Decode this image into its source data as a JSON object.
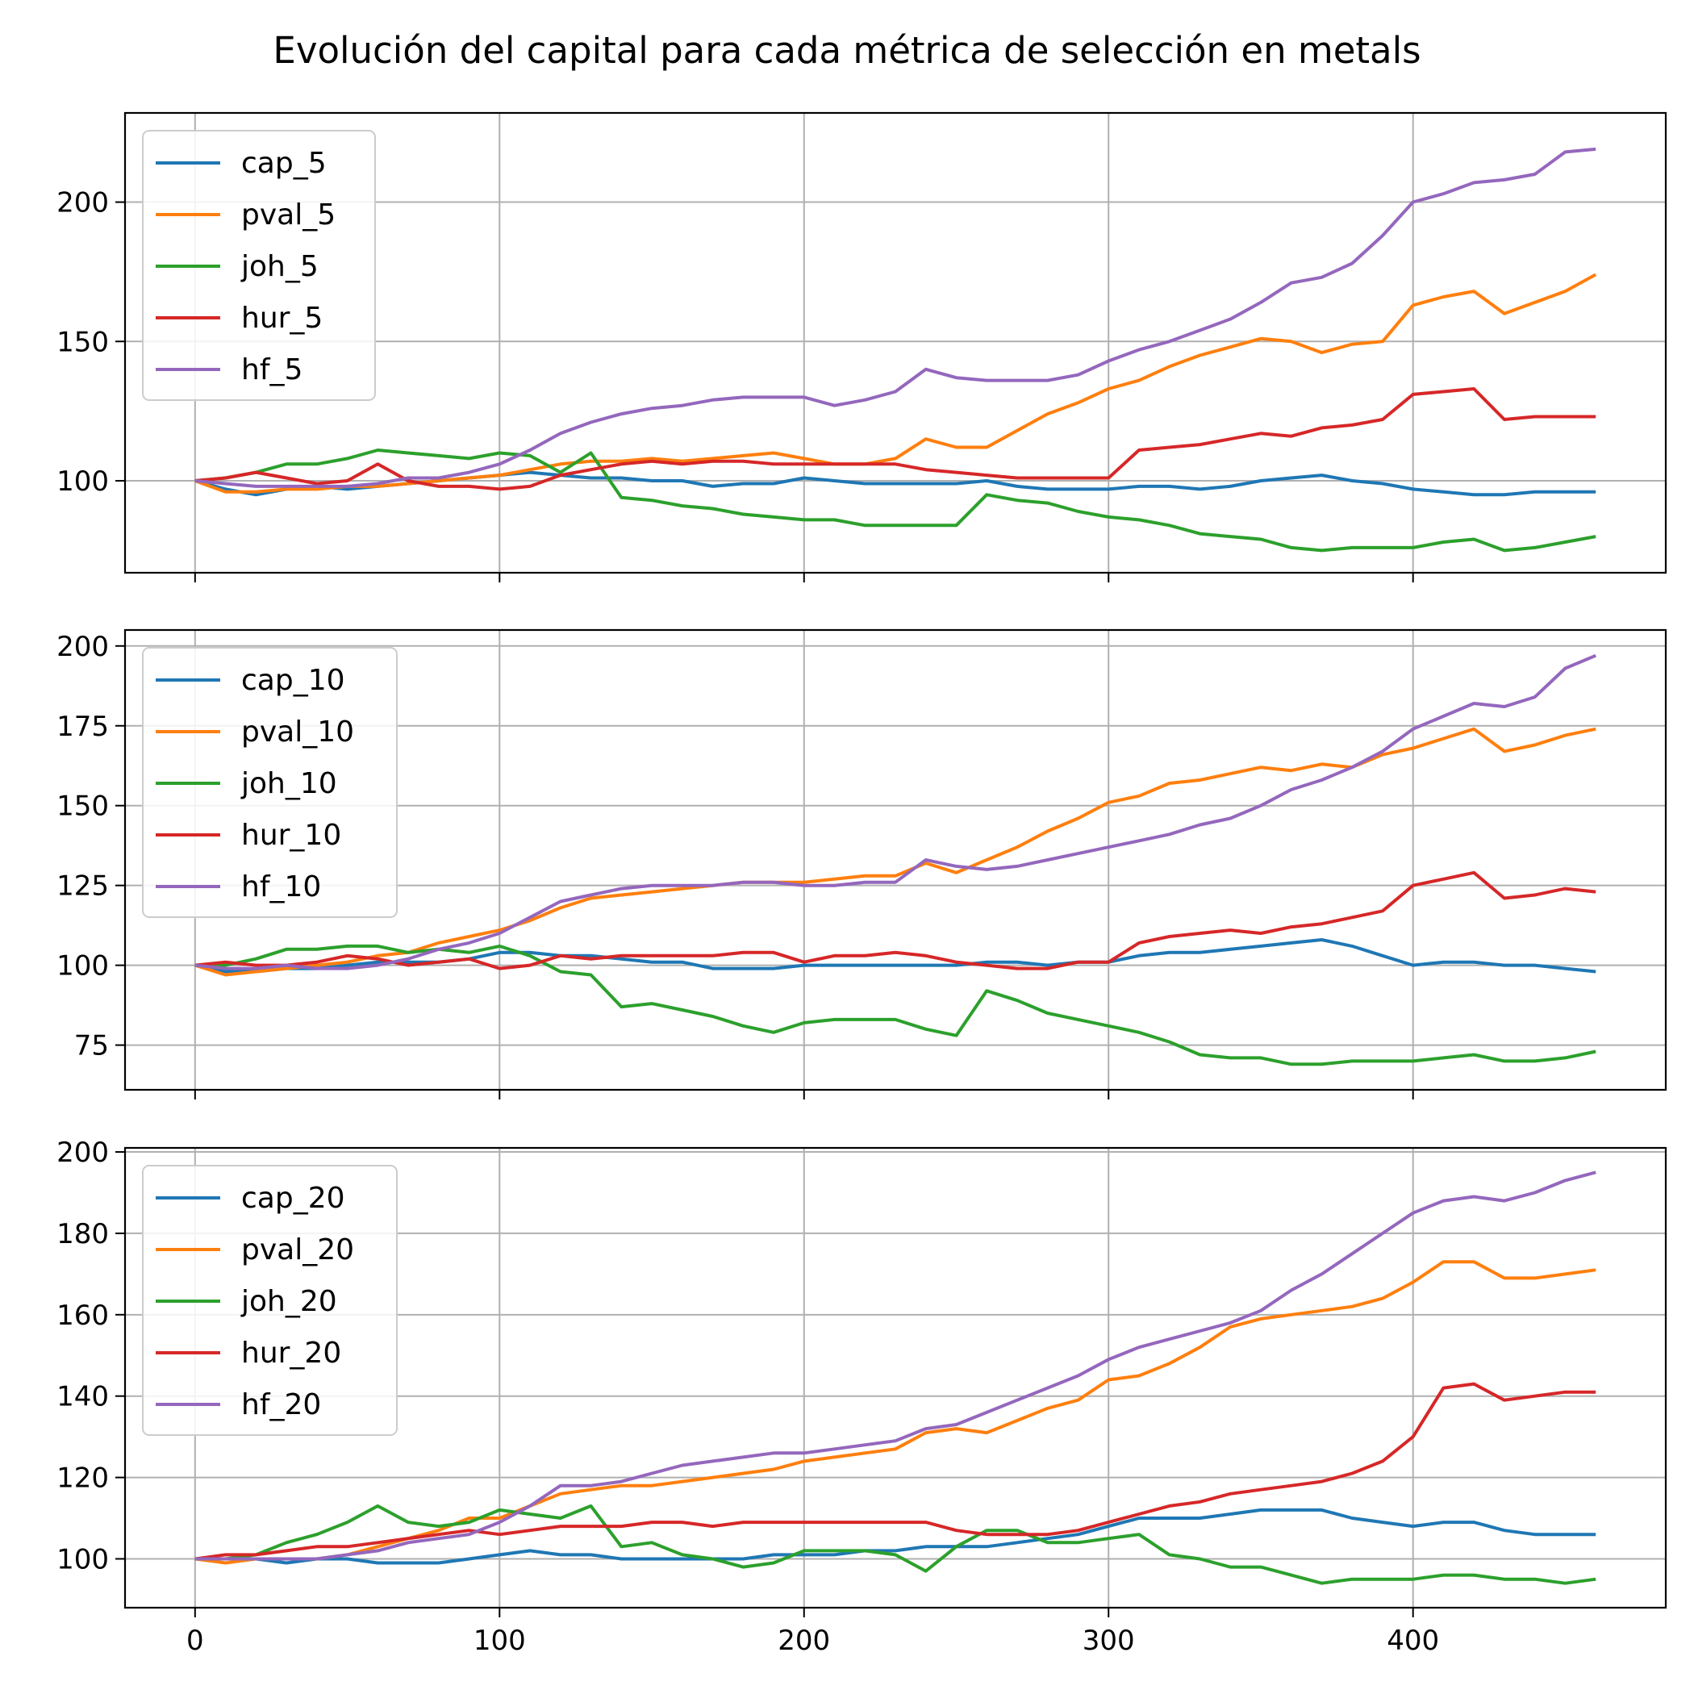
{
  "title": "Evolución del capital para cada métrica de selección en metals",
  "chart_data": [
    {
      "type": "line",
      "panel": "top",
      "xlim": [
        -23,
        483
      ],
      "ylim": [
        67,
        232
      ],
      "xticks": [
        0,
        100,
        200,
        300,
        400
      ],
      "yticks": [
        100,
        150,
        200
      ],
      "xticklabels_visible": false,
      "grid": true,
      "legend_position": "upper-left",
      "x": [
        0,
        10,
        20,
        30,
        40,
        50,
        60,
        70,
        80,
        90,
        100,
        110,
        120,
        130,
        140,
        150,
        160,
        170,
        180,
        190,
        200,
        210,
        220,
        230,
        240,
        250,
        260,
        270,
        280,
        290,
        300,
        310,
        320,
        330,
        340,
        350,
        360,
        370,
        380,
        390,
        400,
        410,
        420,
        430,
        440,
        450,
        460
      ],
      "series": [
        {
          "name": "cap_5",
          "color": "#1f77b4",
          "values": [
            100,
            97,
            95,
            97,
            98,
            97,
            98,
            99,
            100,
            101,
            102,
            103,
            102,
            101,
            101,
            100,
            100,
            98,
            99,
            99,
            101,
            100,
            99,
            99,
            99,
            99,
            100,
            98,
            97,
            97,
            97,
            98,
            98,
            97,
            98,
            100,
            101,
            102,
            100,
            99,
            97,
            96,
            95,
            95,
            96,
            96,
            96
          ]
        },
        {
          "name": "pval_5",
          "color": "#ff7f0e",
          "values": [
            100,
            96,
            96,
            97,
            97,
            98,
            98,
            99,
            100,
            101,
            102,
            104,
            106,
            107,
            107,
            108,
            107,
            108,
            109,
            110,
            108,
            106,
            106,
            108,
            115,
            112,
            112,
            118,
            124,
            128,
            133,
            136,
            141,
            145,
            148,
            151,
            150,
            146,
            149,
            150,
            163,
            166,
            168,
            160,
            164,
            168,
            174
          ]
        },
        {
          "name": "joh_5",
          "color": "#2ca02c",
          "values": [
            100,
            101,
            103,
            106,
            106,
            108,
            111,
            110,
            109,
            108,
            110,
            109,
            103,
            110,
            94,
            93,
            91,
            90,
            88,
            87,
            86,
            86,
            84,
            84,
            84,
            84,
            95,
            93,
            92,
            89,
            87,
            86,
            84,
            81,
            80,
            79,
            76,
            75,
            76,
            76,
            76,
            78,
            79,
            75,
            76,
            78,
            80
          ]
        },
        {
          "name": "hur_5",
          "color": "#d62728",
          "values": [
            100,
            101,
            103,
            101,
            99,
            100,
            106,
            100,
            98,
            98,
            97,
            98,
            102,
            104,
            106,
            107,
            106,
            107,
            107,
            106,
            106,
            106,
            106,
            106,
            104,
            103,
            102,
            101,
            101,
            101,
            101,
            111,
            112,
            113,
            115,
            117,
            116,
            119,
            120,
            122,
            131,
            132,
            133,
            122,
            123,
            123,
            123
          ]
        },
        {
          "name": "hf_5",
          "color": "#9467bd",
          "values": [
            100,
            99,
            98,
            98,
            98,
            98,
            99,
            101,
            101,
            103,
            106,
            111,
            117,
            121,
            124,
            126,
            127,
            129,
            130,
            130,
            130,
            127,
            129,
            132,
            140,
            137,
            136,
            136,
            136,
            138,
            143,
            147,
            150,
            154,
            158,
            164,
            171,
            173,
            178,
            188,
            200,
            203,
            207,
            208,
            210,
            218,
            219
          ]
        }
      ]
    },
    {
      "type": "line",
      "panel": "middle",
      "xlim": [
        -23,
        483
      ],
      "ylim": [
        61,
        205
      ],
      "xticks": [
        0,
        100,
        200,
        300,
        400
      ],
      "yticks": [
        75,
        100,
        125,
        150,
        175,
        200
      ],
      "xticklabels_visible": false,
      "grid": true,
      "legend_position": "upper-left",
      "x": [
        0,
        10,
        20,
        30,
        40,
        50,
        60,
        70,
        80,
        90,
        100,
        110,
        120,
        130,
        140,
        150,
        160,
        170,
        180,
        190,
        200,
        210,
        220,
        230,
        240,
        250,
        260,
        270,
        280,
        290,
        300,
        310,
        320,
        330,
        340,
        350,
        360,
        370,
        380,
        390,
        400,
        410,
        420,
        430,
        440,
        450,
        460
      ],
      "series": [
        {
          "name": "cap_10",
          "color": "#1f77b4",
          "values": [
            100,
            98,
            98,
            99,
            99,
            100,
            101,
            101,
            101,
            102,
            104,
            104,
            103,
            103,
            102,
            101,
            101,
            99,
            99,
            99,
            100,
            100,
            100,
            100,
            100,
            100,
            101,
            101,
            100,
            101,
            101,
            103,
            104,
            104,
            105,
            106,
            107,
            108,
            106,
            103,
            100,
            101,
            101,
            100,
            100,
            99,
            98
          ]
        },
        {
          "name": "pval_10",
          "color": "#ff7f0e",
          "values": [
            100,
            97,
            98,
            99,
            100,
            101,
            103,
            104,
            107,
            109,
            111,
            114,
            118,
            121,
            122,
            123,
            124,
            125,
            126,
            126,
            126,
            127,
            128,
            128,
            132,
            129,
            133,
            137,
            142,
            146,
            151,
            153,
            157,
            158,
            160,
            162,
            161,
            163,
            162,
            166,
            168,
            171,
            174,
            167,
            169,
            172,
            174
          ]
        },
        {
          "name": "joh_10",
          "color": "#2ca02c",
          "values": [
            100,
            100,
            102,
            105,
            105,
            106,
            106,
            104,
            105,
            104,
            106,
            103,
            98,
            97,
            87,
            88,
            86,
            84,
            81,
            79,
            82,
            83,
            83,
            83,
            80,
            78,
            92,
            89,
            85,
            83,
            81,
            79,
            76,
            72,
            71,
            71,
            69,
            69,
            70,
            70,
            70,
            71,
            72,
            70,
            70,
            71,
            73
          ]
        },
        {
          "name": "hur_10",
          "color": "#d62728",
          "values": [
            100,
            101,
            100,
            100,
            101,
            103,
            102,
            100,
            101,
            102,
            99,
            100,
            103,
            102,
            103,
            103,
            103,
            103,
            104,
            104,
            101,
            103,
            103,
            104,
            103,
            101,
            100,
            99,
            99,
            101,
            101,
            107,
            109,
            110,
            111,
            110,
            112,
            113,
            115,
            117,
            125,
            127,
            129,
            121,
            122,
            124,
            123
          ]
        },
        {
          "name": "hf_10",
          "color": "#9467bd",
          "values": [
            100,
            99,
            99,
            100,
            99,
            99,
            100,
            102,
            105,
            107,
            110,
            115,
            120,
            122,
            124,
            125,
            125,
            125,
            126,
            126,
            125,
            125,
            126,
            126,
            133,
            131,
            130,
            131,
            133,
            135,
            137,
            139,
            141,
            144,
            146,
            150,
            155,
            158,
            162,
            167,
            174,
            178,
            182,
            181,
            184,
            193,
            197
          ]
        }
      ]
    },
    {
      "type": "line",
      "panel": "bottom",
      "xlim": [
        -23,
        483
      ],
      "ylim": [
        88,
        201
      ],
      "xticks": [
        0,
        100,
        200,
        300,
        400
      ],
      "yticks": [
        100,
        120,
        140,
        160,
        180,
        200
      ],
      "xticklabels_visible": true,
      "grid": true,
      "legend_position": "upper-left",
      "x": [
        0,
        10,
        20,
        30,
        40,
        50,
        60,
        70,
        80,
        90,
        100,
        110,
        120,
        130,
        140,
        150,
        160,
        170,
        180,
        190,
        200,
        210,
        220,
        230,
        240,
        250,
        260,
        270,
        280,
        290,
        300,
        310,
        320,
        330,
        340,
        350,
        360,
        370,
        380,
        390,
        400,
        410,
        420,
        430,
        440,
        450,
        460
      ],
      "series": [
        {
          "name": "cap_20",
          "color": "#1f77b4",
          "values": [
            100,
            100,
            100,
            99,
            100,
            100,
            99,
            99,
            99,
            100,
            101,
            102,
            101,
            101,
            100,
            100,
            100,
            100,
            100,
            101,
            101,
            101,
            102,
            102,
            103,
            103,
            103,
            104,
            105,
            106,
            108,
            110,
            110,
            110,
            111,
            112,
            112,
            112,
            110,
            109,
            108,
            109,
            109,
            107,
            106,
            106,
            106
          ]
        },
        {
          "name": "pval_20",
          "color": "#ff7f0e",
          "values": [
            100,
            99,
            100,
            100,
            100,
            101,
            103,
            105,
            107,
            110,
            110,
            113,
            116,
            117,
            118,
            118,
            119,
            120,
            121,
            122,
            124,
            125,
            126,
            127,
            131,
            132,
            131,
            134,
            137,
            139,
            144,
            145,
            148,
            152,
            157,
            159,
            160,
            161,
            162,
            164,
            168,
            173,
            173,
            169,
            169,
            170,
            171
          ]
        },
        {
          "name": "joh_20",
          "color": "#2ca02c",
          "values": [
            100,
            100,
            101,
            104,
            106,
            109,
            113,
            109,
            108,
            109,
            112,
            111,
            110,
            113,
            103,
            104,
            101,
            100,
            98,
            99,
            102,
            102,
            102,
            101,
            97,
            103,
            107,
            107,
            104,
            104,
            105,
            106,
            101,
            100,
            98,
            98,
            96,
            94,
            95,
            95,
            95,
            96,
            96,
            95,
            95,
            94,
            95
          ]
        },
        {
          "name": "hur_20",
          "color": "#d62728",
          "values": [
            100,
            101,
            101,
            102,
            103,
            103,
            104,
            105,
            106,
            107,
            106,
            107,
            108,
            108,
            108,
            109,
            109,
            108,
            109,
            109,
            109,
            109,
            109,
            109,
            109,
            107,
            106,
            106,
            106,
            107,
            109,
            111,
            113,
            114,
            116,
            117,
            118,
            119,
            121,
            124,
            130,
            142,
            143,
            139,
            140,
            141,
            141
          ]
        },
        {
          "name": "hf_20",
          "color": "#9467bd",
          "values": [
            100,
            100,
            100,
            100,
            100,
            101,
            102,
            104,
            105,
            106,
            109,
            113,
            118,
            118,
            119,
            121,
            123,
            124,
            125,
            126,
            126,
            127,
            128,
            129,
            132,
            133,
            136,
            139,
            142,
            145,
            149,
            152,
            154,
            156,
            158,
            161,
            166,
            170,
            175,
            180,
            185,
            188,
            189,
            188,
            190,
            193,
            195
          ]
        }
      ]
    }
  ]
}
